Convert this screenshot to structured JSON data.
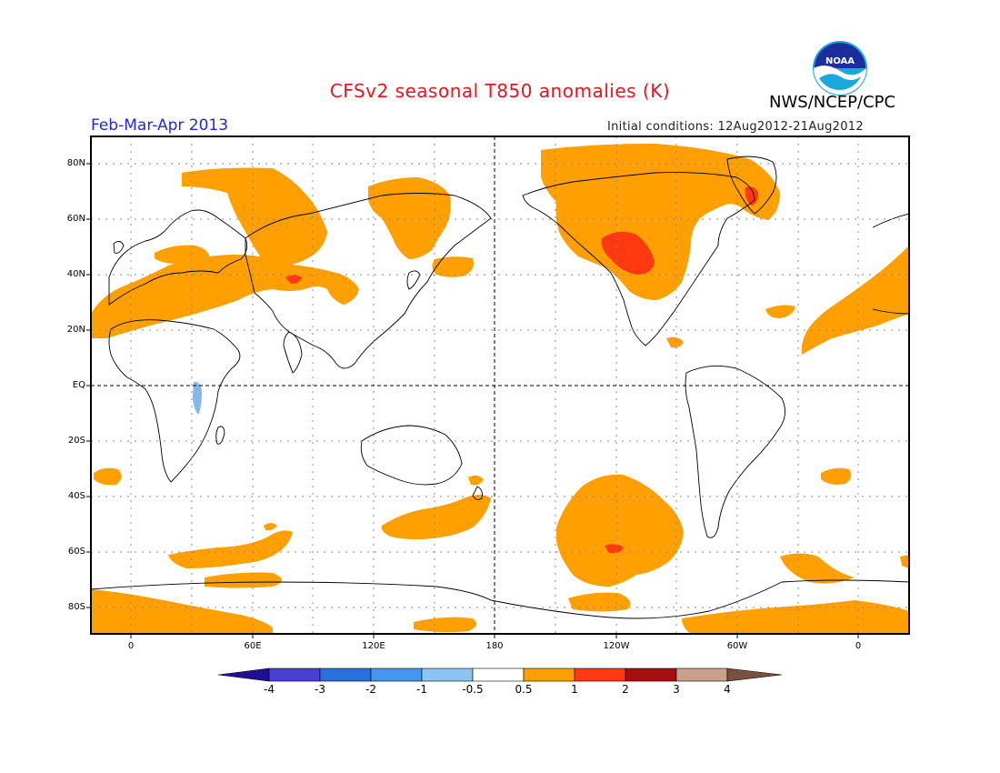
{
  "title": "CFSv2 seasonal T850 anomalies (K)",
  "agency": "NWS/NCEP/CPC",
  "season": "Feb-Mar-Apr 2013",
  "initial_conditions": "Initial conditions: 12Aug2012-21Aug2012",
  "logo_text": "NOAA",
  "lat_labels": [
    "80N",
    "60N",
    "40N",
    "20N",
    "EQ",
    "20S",
    "40S",
    "60S",
    "80S"
  ],
  "lon_labels": [
    "0",
    "60E",
    "120E",
    "180",
    "120W",
    "60W",
    "0"
  ],
  "colorbar": {
    "labels": [
      "-4",
      "-3",
      "-2",
      "-1",
      "-0.5",
      "0.5",
      "1",
      "2",
      "3",
      "4"
    ],
    "colors": [
      "#1e0f96",
      "#4a3fd0",
      "#2a6fde",
      "#4696f0",
      "#8cc4f0",
      "#ffffff",
      "#ffa000",
      "#ff3a10",
      "#a50f10",
      "#c8a08c",
      "#7a5040"
    ]
  },
  "anomaly_colors": {
    "warm1": "#ffa000",
    "warm2": "#ff3a10",
    "cool1": "#82b8ee"
  }
}
